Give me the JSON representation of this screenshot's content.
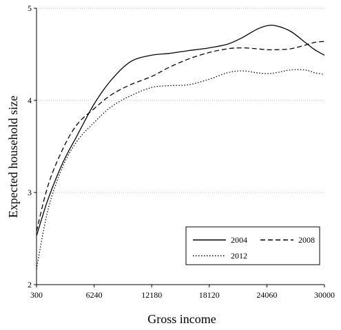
{
  "chart_data": {
    "type": "line",
    "xlabel": "Gross income",
    "ylabel": "Expected household size",
    "xlim": [
      300,
      30000
    ],
    "ylim": [
      2,
      5
    ],
    "xticks": [
      300,
      6240,
      12180,
      18120,
      24060,
      30000
    ],
    "xtick_labels": [
      "300",
      "6240",
      "12180",
      "18120",
      "24060",
      "30000"
    ],
    "yticks": [
      2,
      3,
      4,
      5
    ],
    "ytick_labels": [
      "2",
      "3",
      "4",
      "5"
    ],
    "grid": "horizontal-dotted",
    "legend_position": "bottom-right",
    "series": [
      {
        "name": "2004",
        "style": "solid",
        "color": "#000000",
        "x": [
          300,
          1500,
          3000,
          4500,
          6240,
          8000,
          10000,
          12180,
          14000,
          16000,
          18120,
          20000,
          21500,
          23000,
          24060,
          25000,
          26500,
          28000,
          29000,
          30000
        ],
        "y": [
          2.53,
          2.93,
          3.32,
          3.62,
          3.96,
          4.22,
          4.42,
          4.49,
          4.51,
          4.54,
          4.57,
          4.61,
          4.68,
          4.77,
          4.81,
          4.81,
          4.75,
          4.63,
          4.55,
          4.49
        ]
      },
      {
        "name": "2008",
        "style": "dashed",
        "color": "#000000",
        "x": [
          300,
          1500,
          3000,
          4500,
          6240,
          8000,
          10000,
          12180,
          14000,
          16000,
          18120,
          20000,
          21500,
          23000,
          24060,
          25000,
          26500,
          28000,
          29000,
          30000
        ],
        "y": [
          2.58,
          3.08,
          3.47,
          3.74,
          3.91,
          4.06,
          4.17,
          4.26,
          4.36,
          4.45,
          4.52,
          4.56,
          4.57,
          4.56,
          4.55,
          4.55,
          4.56,
          4.6,
          4.63,
          4.64
        ]
      },
      {
        "name": "2012",
        "style": "dotted",
        "color": "#000000",
        "x": [
          300,
          1500,
          3000,
          4500,
          6240,
          8000,
          10000,
          12180,
          14000,
          16000,
          18120,
          20000,
          21500,
          23000,
          24060,
          25000,
          26500,
          28000,
          29000,
          30000
        ],
        "y": [
          2.17,
          2.82,
          3.28,
          3.56,
          3.76,
          3.93,
          4.05,
          4.14,
          4.16,
          4.17,
          4.23,
          4.3,
          4.32,
          4.3,
          4.29,
          4.3,
          4.33,
          4.33,
          4.3,
          4.28
        ]
      }
    ]
  }
}
